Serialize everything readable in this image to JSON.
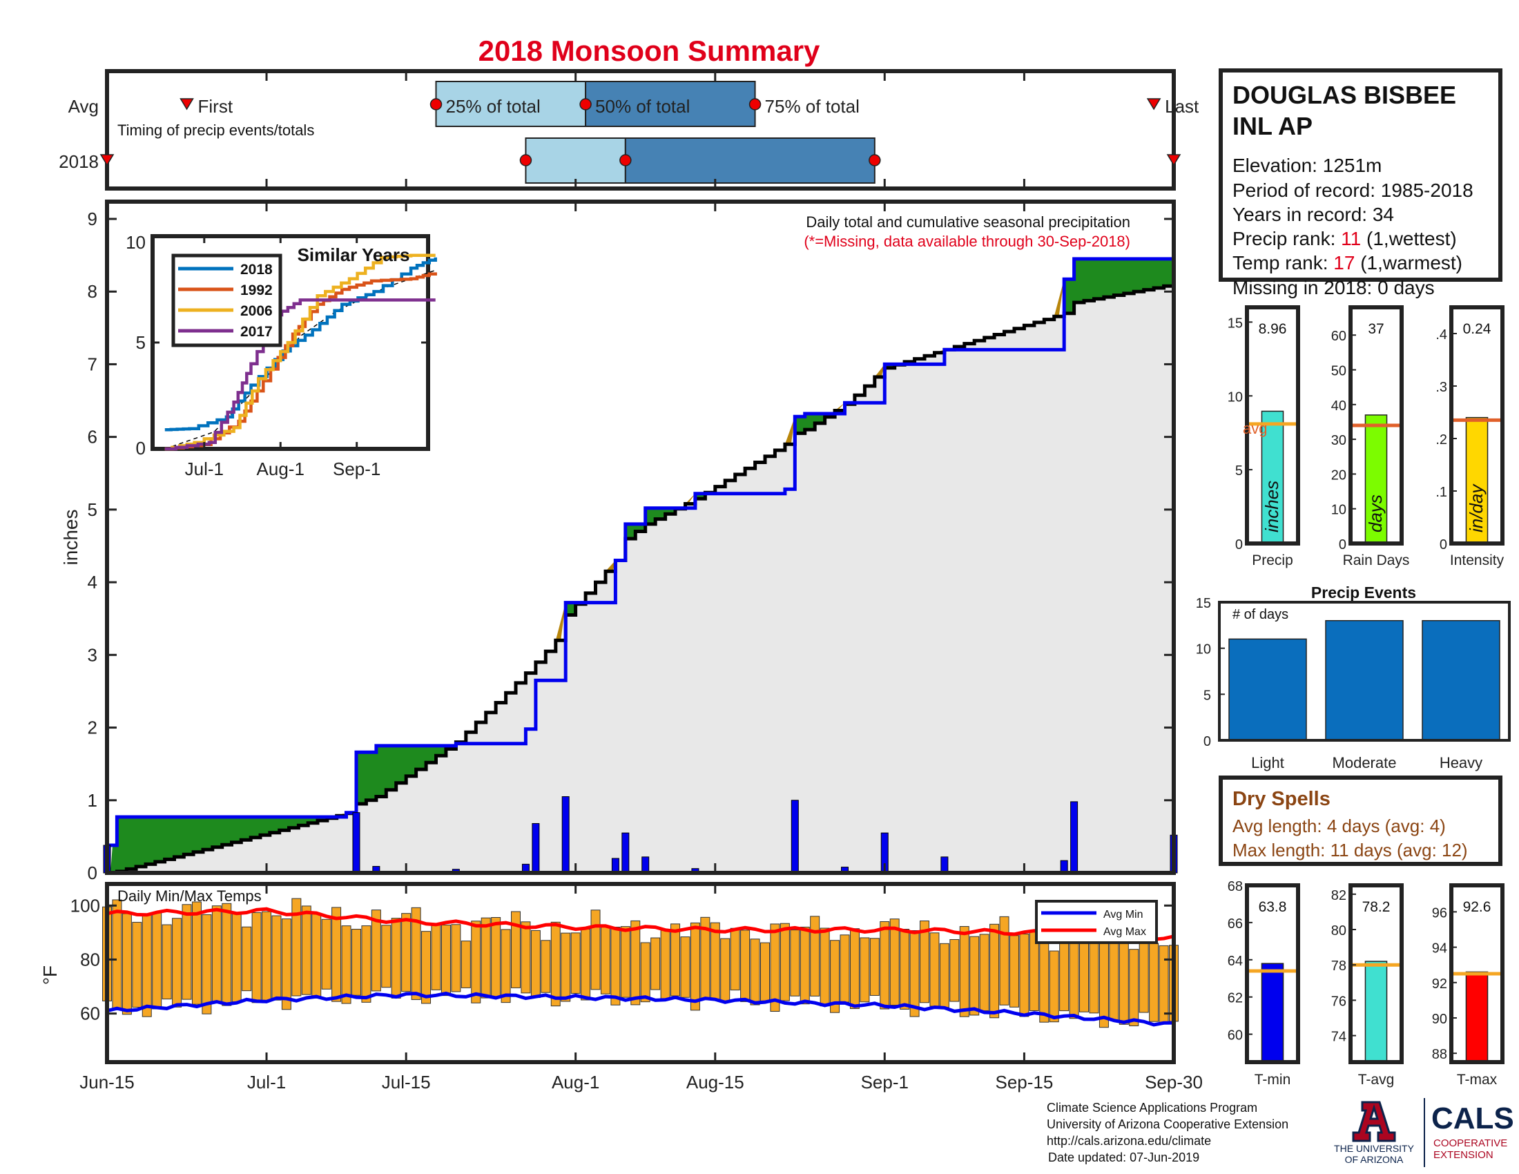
{
  "title": "2018 Monsoon Summary",
  "timing": {
    "caption": "Timing of precip events/totals",
    "row_labels": [
      "Avg",
      "2018"
    ],
    "first_label": "First",
    "last_label": "Last",
    "q25_label": "25% of total",
    "q50_label": "50% of total",
    "q75_label": "75% of total"
  },
  "station": {
    "name_line1": "DOUGLAS BISBEE",
    "name_line2": "INL AP",
    "elevation": "Elevation: 1251m",
    "period": "Period of record: 1985-2018",
    "years": "Years in record: 34",
    "precip_rank_prefix": "Precip rank: ",
    "precip_rank": "11",
    "precip_rank_suffix": " (1,wettest)",
    "temp_rank_prefix": "Temp rank: ",
    "temp_rank": "17",
    "temp_rank_suffix": " (1,warmest)",
    "missing": "Missing in 2018: 0 days"
  },
  "main": {
    "note": "Daily total and cumulative seasonal precipitation",
    "missing_note": "(*=Missing, data available through 30-Sep-2018)",
    "ylabel": "inches"
  },
  "inset": {
    "title": "Similar Years",
    "legend": [
      "2018",
      "1992",
      "2006",
      "2017"
    ]
  },
  "temps": {
    "caption": "Daily Min/Max Temps",
    "ylabel": "°F",
    "legend_min": "Avg Min",
    "legend_max": "Avg Max"
  },
  "x_ticks": [
    "Jun-15",
    "Jul-1",
    "Jul-15",
    "Aug-1",
    "Aug-15",
    "Sep-1",
    "Sep-15",
    "Sep-30"
  ],
  "stats": {
    "precip": {
      "value": "8.96",
      "unit": "inches",
      "label": "Precip",
      "avg_label": "avg"
    },
    "rain_days": {
      "value": "37",
      "unit": "days",
      "label": "Rain Days"
    },
    "intensity": {
      "value": "0.24",
      "unit": "in/day",
      "label": "Intensity"
    }
  },
  "events": {
    "title": "Precip Events",
    "ylabel": "# of days",
    "categories": [
      "Light",
      "Moderate",
      "Heavy"
    ]
  },
  "dry_spells": {
    "title": "Dry Spells",
    "avg": "Avg length: 4 days (avg: 4)",
    "max": "Max length: 11 days (avg: 12)"
  },
  "temp_stats": {
    "tmin": {
      "value": "63.8",
      "label": "T-min"
    },
    "tavg": {
      "value": "78.2",
      "label": "T-avg"
    },
    "tmax": {
      "value": "92.6",
      "label": "T-max"
    }
  },
  "footer": {
    "line1": "Climate Science Applications Program",
    "line2": "University of Arizona Cooperative Extension",
    "line3": "http://cals.arizona.edu/climate",
    "line4": "Date updated: 07-Jun-2019"
  },
  "logos": {
    "ua_line1": "THE UNIVERSITY",
    "ua_line2": "OF ARIZONA",
    "cals": "CALS",
    "coop1": "COOPERATIVE",
    "coop2": "EXTENSION"
  },
  "colors": {
    "title": "#e0001a",
    "light_blue": "#a8d4e6",
    "dark_blue": "#4682b4",
    "green": "#1e8a1e",
    "brown": "#b8860b",
    "daily_bar": "#0000ee",
    "orange_bar": "#f5a623",
    "avg_line": "#e0602a",
    "precip_bar": "#40e0d0",
    "days_bar": "#7cfc00",
    "intensity_bar": "#ffd700",
    "events_bar": "#0a6ebd",
    "tmin_bar": "#0000ee",
    "tavg_bar": "#40e0d0",
    "tmax_bar": "#ff0000",
    "temp_avg_line": "#f5a623",
    "dry_spell_text": "#8b4513"
  },
  "chart_data": [
    {
      "type": "timeline",
      "name": "Timing of precip events/totals",
      "x_range": [
        "Jun-15",
        "Sep-30"
      ],
      "avg": {
        "first": "Jun-23",
        "q25": "Jul-18",
        "q50": "Aug-2",
        "q75": "Aug-19",
        "last": "Sep-28"
      },
      "y2018": {
        "first": "Jun-15",
        "q25": "Jul-27",
        "q50": "Aug-6",
        "q75": "Aug-31",
        "last": "Sep-30"
      }
    },
    {
      "type": "area",
      "name": "Daily total and cumulative seasonal precipitation",
      "ylim": [
        0,
        9
      ],
      "yticks": [
        0,
        1,
        2,
        3,
        4,
        5,
        6,
        7,
        8,
        9
      ],
      "x": [
        "Jun-15",
        "Jun-16",
        "Jul-9",
        "Jul-10",
        "Jul-12",
        "Jul-20",
        "Jul-27",
        "Jul-28",
        "Jul-30",
        "Jul-31",
        "Aug-5",
        "Aug-6",
        "Aug-8",
        "Aug-13",
        "Aug-22",
        "Aug-23",
        "Aug-24",
        "Aug-28",
        "Sep-1",
        "Sep-7",
        "Sep-19",
        "Sep-20",
        "Sep-30"
      ],
      "cumulative_2018": [
        0.38,
        0.77,
        0.83,
        1.66,
        1.75,
        1.78,
        1.98,
        2.65,
        2.65,
        3.72,
        4.3,
        4.8,
        5.02,
        5.22,
        5.28,
        6.28,
        6.32,
        6.47,
        7.0,
        7.2,
        8.17,
        8.45,
        9.0
      ],
      "cumulative_avg": [
        0.0,
        0.02,
        0.82,
        0.95,
        1.05,
        1.8,
        2.75,
        2.9,
        3.2,
        3.55,
        4.3,
        4.6,
        4.8,
        5.15,
        5.9,
        6.05,
        6.1,
        6.45,
        6.95,
        7.2,
        7.7,
        7.85,
        8.1
      ],
      "daily_2018": [
        0.38,
        0.0,
        0.02,
        0.83,
        0.09,
        0.05,
        0.12,
        0.68,
        0.0,
        1.05,
        0.2,
        0.55,
        0.22,
        0.06,
        0.0,
        1.0,
        0.0,
        0.08,
        0.55,
        0.22,
        0.17,
        0.98,
        0.52
      ]
    },
    {
      "type": "line",
      "name": "Similar Years",
      "x_ticks": [
        "Jul-1",
        "Aug-1",
        "Sep-1"
      ],
      "ylim": [
        0,
        10
      ],
      "yticks": [
        0,
        5,
        10
      ],
      "series": [
        {
          "name": "2018",
          "final": 9.0
        },
        {
          "name": "1992",
          "final": 8.3
        },
        {
          "name": "2006",
          "final": 9.1
        },
        {
          "name": "2017",
          "final": 7.0
        }
      ]
    },
    {
      "type": "bar",
      "name": "Daily Min/Max Temps",
      "ylim": [
        42,
        108
      ],
      "yticks": [
        60,
        80,
        100
      ],
      "avg_max": {
        "Jun-15": 97,
        "Jul-1": 98,
        "Jul-15": 94,
        "Aug-1": 92,
        "Aug-15": 91,
        "Sep-1": 91,
        "Sep-15": 90,
        "Sep-30": 88
      },
      "avg_min": {
        "Jun-15": 61,
        "Jul-1": 65,
        "Jul-15": 67,
        "Aug-1": 66,
        "Aug-15": 65,
        "Sep-1": 63,
        "Sep-15": 60,
        "Sep-30": 56
      }
    },
    {
      "type": "bar",
      "name": "Precip",
      "categories": [
        "Precip"
      ],
      "values": [
        8.96
      ],
      "avg": 8.1,
      "ylim": [
        0,
        16
      ],
      "yticks": [
        0,
        5,
        10,
        15
      ]
    },
    {
      "type": "bar",
      "name": "Rain Days",
      "categories": [
        "Rain Days"
      ],
      "values": [
        37
      ],
      "avg": 34,
      "ylim": [
        0,
        68
      ],
      "yticks": [
        0,
        10,
        20,
        30,
        40,
        50,
        60
      ]
    },
    {
      "type": "bar",
      "name": "Intensity",
      "categories": [
        "Intensity"
      ],
      "values": [
        0.24
      ],
      "avg": 0.235,
      "ylim": [
        0,
        0.45
      ],
      "yticks": [
        0,
        0.1,
        0.2,
        0.3,
        0.4
      ]
    },
    {
      "type": "bar",
      "name": "Precip Events",
      "categories": [
        "Light",
        "Moderate",
        "Heavy"
      ],
      "values": [
        11,
        13,
        13
      ],
      "ylim": [
        0,
        15
      ],
      "yticks": [
        0,
        5,
        10,
        15
      ]
    },
    {
      "type": "bar",
      "name": "T-min",
      "categories": [
        "T-min"
      ],
      "values": [
        63.8
      ],
      "avg": 63.4,
      "ylim": [
        58.5,
        68
      ],
      "yticks": [
        60,
        62,
        64,
        66,
        68
      ]
    },
    {
      "type": "bar",
      "name": "T-avg",
      "categories": [
        "T-avg"
      ],
      "values": [
        78.2
      ],
      "avg": 78.0,
      "ylim": [
        72.5,
        82.5
      ],
      "yticks": [
        74,
        76,
        78,
        80,
        82
      ]
    },
    {
      "type": "bar",
      "name": "T-max",
      "categories": [
        "T-max"
      ],
      "values": [
        92.6
      ],
      "avg": 92.5,
      "ylim": [
        87.5,
        97.5
      ],
      "yticks": [
        88,
        90,
        92,
        94,
        96
      ]
    }
  ]
}
